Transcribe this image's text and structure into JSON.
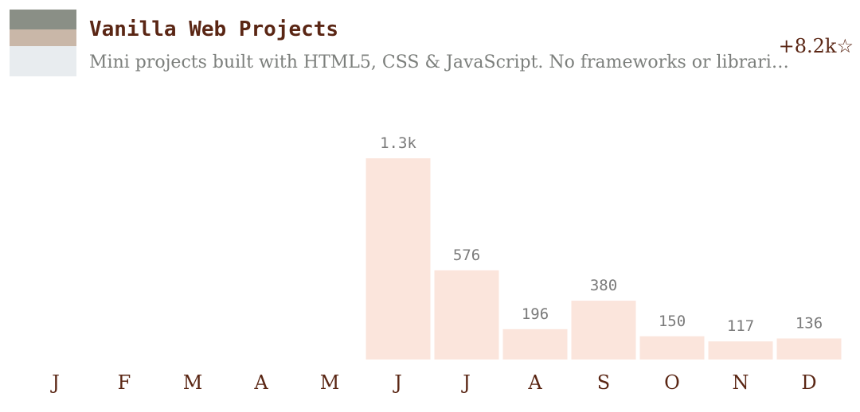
{
  "header": {
    "title": "Vanilla Web Projects",
    "description": "Mini projects built with HTML5, CSS & JavaScript. No frameworks or librari…",
    "stars": "+8.2k☆"
  },
  "chart_data": {
    "type": "bar",
    "categories": [
      "J",
      "F",
      "M",
      "A",
      "M",
      "J",
      "J",
      "A",
      "S",
      "O",
      "N",
      "D"
    ],
    "values": [
      null,
      null,
      null,
      null,
      null,
      1300,
      576,
      196,
      380,
      150,
      117,
      136
    ],
    "value_labels": [
      null,
      null,
      null,
      null,
      null,
      "1.3k",
      "576",
      "196",
      "380",
      "150",
      "117",
      "136"
    ],
    "color": "#fbe5dc"
  }
}
